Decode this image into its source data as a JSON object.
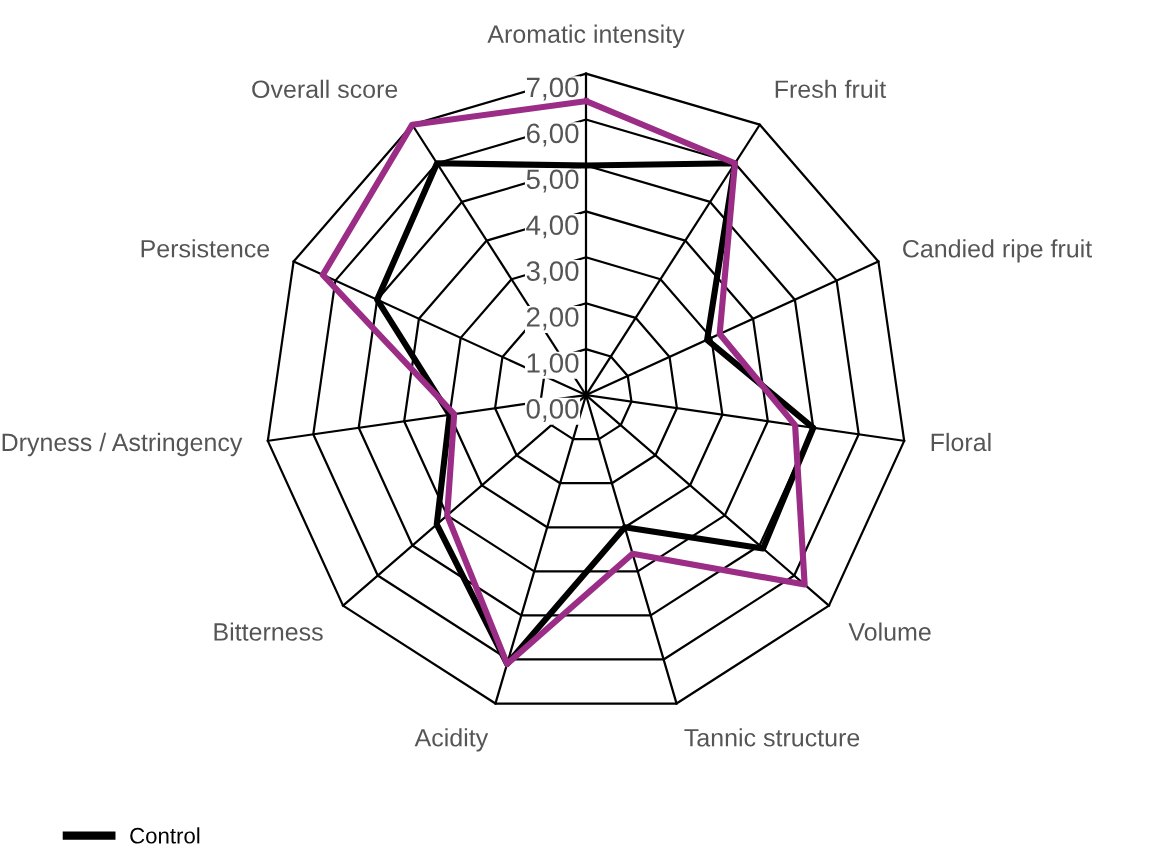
{
  "chart_data": {
    "type": "radar",
    "categories": [
      "Aromatic intensity",
      "Fresh fruit",
      "Candied ripe fruit",
      "Floral",
      "Volume",
      "Tannic structure",
      "Acidity",
      "Bitterness",
      "Dryness / Astringency",
      "Persistence",
      "Overall score"
    ],
    "series": [
      {
        "name": "Control",
        "color": "#000000",
        "values": [
          5.0,
          6.0,
          2.9,
          5.0,
          5.1,
          3.0,
          6.1,
          4.3,
          3.0,
          5.0,
          6.0
        ]
      },
      {
        "color": "#9b2d86",
        "values": [
          6.4,
          6.0,
          3.2,
          4.6,
          6.3,
          3.6,
          6.1,
          4.0,
          2.9,
          6.3,
          7.0
        ]
      }
    ],
    "ylim": [
      0,
      7
    ],
    "yticks": [
      {
        "value": 0,
        "label": "0,00"
      },
      {
        "value": 1,
        "label": "1,00"
      },
      {
        "value": 2,
        "label": "2,00"
      },
      {
        "value": 3,
        "label": "3,00"
      },
      {
        "value": 4,
        "label": "4,00"
      },
      {
        "value": 5,
        "label": "5,00"
      },
      {
        "value": 6,
        "label": "6,00"
      },
      {
        "value": 7,
        "label": "7,00"
      }
    ],
    "grid": true,
    "legend": "bottom left"
  }
}
